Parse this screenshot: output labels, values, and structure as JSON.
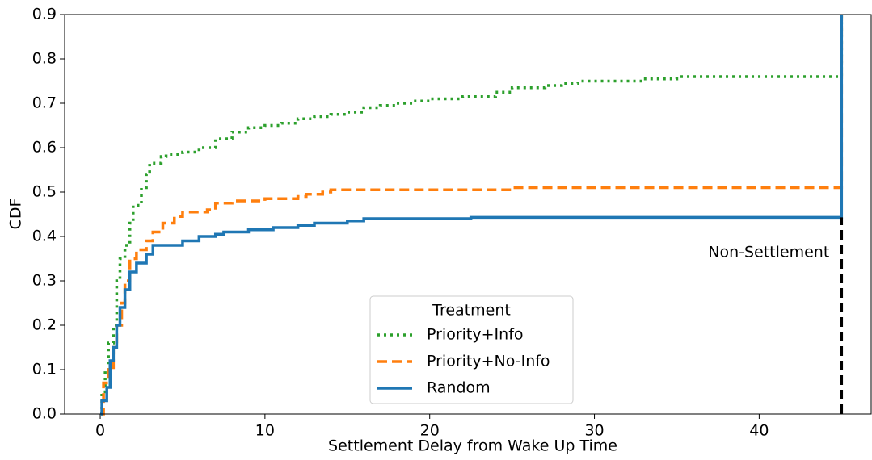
{
  "chart_data": {
    "type": "line",
    "step": "post",
    "xlabel": "Settlement Delay from Wake Up Time",
    "ylabel": "CDF",
    "xlim": [
      -2.16,
      46.8
    ],
    "ylim": [
      0,
      0.9
    ],
    "xticks": [
      0,
      10,
      20,
      30,
      40
    ],
    "yticks": [
      {
        "value": 0,
        "label": "0.0"
      },
      0.1,
      0.2,
      0.3,
      0.4,
      0.5,
      0.6,
      0.7,
      0.8,
      0.9
    ],
    "legend": {
      "title": "Treatment",
      "loc": "lower center"
    },
    "series": [
      {
        "name": "Priority+Info",
        "color": "#2ca02c",
        "linestyle": "dotted",
        "x": [
          0,
          0.1,
          0.3,
          0.5,
          0.8,
          1,
          1.2,
          1.5,
          1.8,
          2,
          2.5,
          2.8,
          3,
          3.7,
          4,
          5,
          6,
          7,
          8,
          9,
          10,
          11,
          12,
          13,
          14,
          15,
          16,
          17,
          18,
          19,
          20,
          22,
          24,
          25,
          27,
          28,
          29,
          33,
          35,
          45,
          45
        ],
        "values": [
          0,
          0.05,
          0.1,
          0.16,
          0.2,
          0.3,
          0.35,
          0.38,
          0.43,
          0.47,
          0.51,
          0.54,
          0.565,
          0.58,
          0.585,
          0.59,
          0.6,
          0.62,
          0.635,
          0.645,
          0.65,
          0.655,
          0.665,
          0.67,
          0.675,
          0.68,
          0.69,
          0.695,
          0.7,
          0.705,
          0.71,
          0.715,
          0.725,
          0.735,
          0.74,
          0.745,
          0.75,
          0.755,
          0.76,
          0.76,
          0.9
        ]
      },
      {
        "name": "Priority+No-Info",
        "color": "#ff7f0e",
        "linestyle": "dashed",
        "x": [
          0,
          0.2,
          0.5,
          0.8,
          1,
          1.3,
          1.5,
          1.8,
          2.2,
          2.8,
          3.2,
          3.8,
          4.5,
          5,
          6.5,
          7,
          8,
          10,
          12,
          12.5,
          13.5,
          14,
          25,
          45,
          45
        ],
        "values": [
          0,
          0.07,
          0.1,
          0.15,
          0.2,
          0.25,
          0.3,
          0.35,
          0.37,
          0.39,
          0.41,
          0.43,
          0.445,
          0.455,
          0.46,
          0.475,
          0.48,
          0.485,
          0.49,
          0.495,
          0.5,
          0.505,
          0.51,
          0.51,
          0.9
        ]
      },
      {
        "name": "Random",
        "color": "#1f77b4",
        "linestyle": "solid",
        "x": [
          0,
          0.1,
          0.4,
          0.6,
          0.8,
          1,
          1.2,
          1.5,
          1.8,
          2.2,
          2.8,
          3.2,
          5,
          6,
          7,
          7.5,
          9,
          10.5,
          12,
          13,
          15,
          16,
          22.5,
          45,
          45
        ],
        "values": [
          0,
          0.03,
          0.06,
          0.12,
          0.15,
          0.2,
          0.24,
          0.28,
          0.32,
          0.34,
          0.36,
          0.38,
          0.39,
          0.4,
          0.405,
          0.41,
          0.415,
          0.42,
          0.425,
          0.43,
          0.435,
          0.44,
          0.443,
          0.443,
          0.9
        ]
      }
    ],
    "annotation": {
      "text": "Non-Settlement",
      "x": 45,
      "y": [
        0,
        0.443
      ],
      "color": "#000000"
    }
  }
}
